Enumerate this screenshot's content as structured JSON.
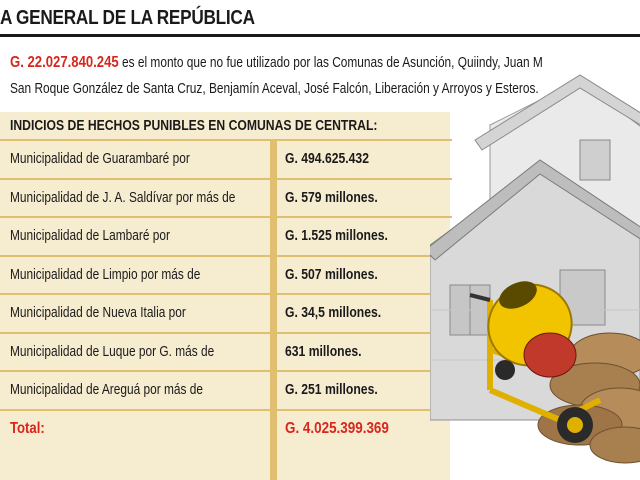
{
  "header": {
    "title": "A GENERAL DE LA REPÚBLICA"
  },
  "intro": {
    "amount": "G. 22.027.840.245",
    "line1_rest": " es el monto que no fue utilizado por las Comunas de Asunción, Quiindy, Juan M",
    "line2": "San Roque González de Santa Cruz, Benjamín Aceval, José Falcón, Liberación y Arroyos y Esteros."
  },
  "table": {
    "title": "INDICIOS DE HECHOS PUNIBLES EN COMUNAS DE CENTRAL:",
    "rows": [
      {
        "label": "Municipalidad de Guarambaré por",
        "value": "G. 494.625.432"
      },
      {
        "label": "Municipalidad de J. A. Saldívar por más de",
        "value": "G. 579 millones."
      },
      {
        "label": "Municipalidad de Lambaré por",
        "value": "G. 1.525 millones."
      },
      {
        "label": "Municipalidad de Limpio por más de",
        "value": "G. 507 millones."
      },
      {
        "label": "Municipalidad de Nueva Italia por",
        "value": "G. 34,5 millones."
      },
      {
        "label": "Municipalidad de Luque por G. más de",
        "value": "631 millones."
      },
      {
        "label": "Municipalidad de Areguá por más de",
        "value": "G. 251 millones."
      }
    ],
    "total": {
      "label": "Total:",
      "value": "G. 4.025.399.369"
    }
  },
  "colors": {
    "accent_red": "#d9261c",
    "panel_bg": "#f6ecd0",
    "rule_gold": "#e0c070",
    "mixer_yellow": "#f2c400"
  },
  "illustration": {
    "icons": [
      "house-icon",
      "cement-mixer-icon",
      "sandbag-pile-icon"
    ]
  }
}
